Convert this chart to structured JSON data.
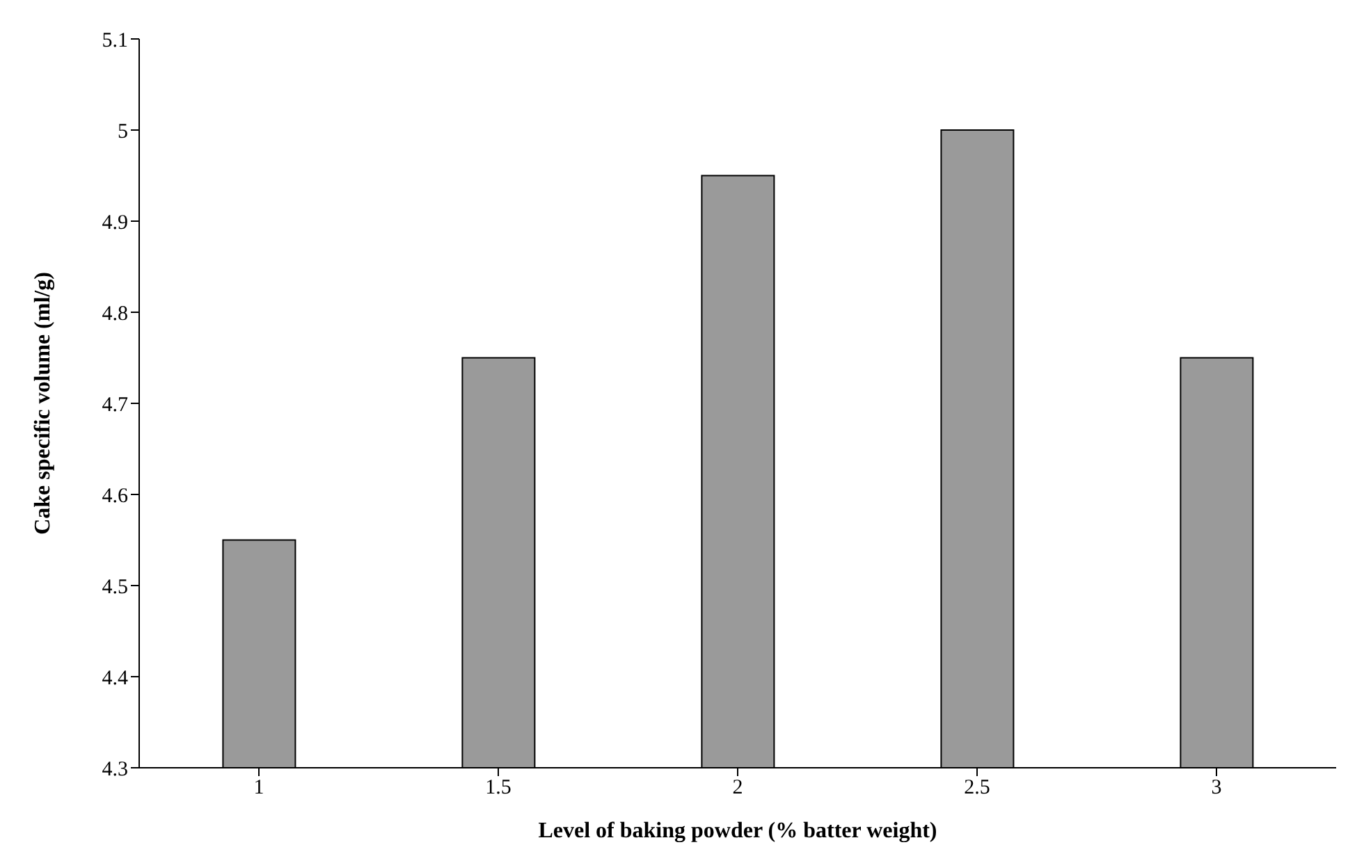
{
  "chart_data": {
    "type": "bar",
    "xlabel": "Level of baking powder (% batter weight)",
    "ylabel": "Cake specific volume (ml/g)",
    "categories": [
      "1",
      "1.5",
      "2",
      "2.5",
      "3"
    ],
    "values": [
      4.55,
      4.75,
      4.95,
      5.0,
      4.75
    ],
    "color": "#9a9a9a",
    "ylim": [
      4.3,
      5.1
    ],
    "yticks": [
      4.3,
      4.4,
      4.5,
      4.6,
      4.7,
      4.8,
      4.9,
      5,
      5.1
    ],
    "grid": false,
    "legend": false
  }
}
